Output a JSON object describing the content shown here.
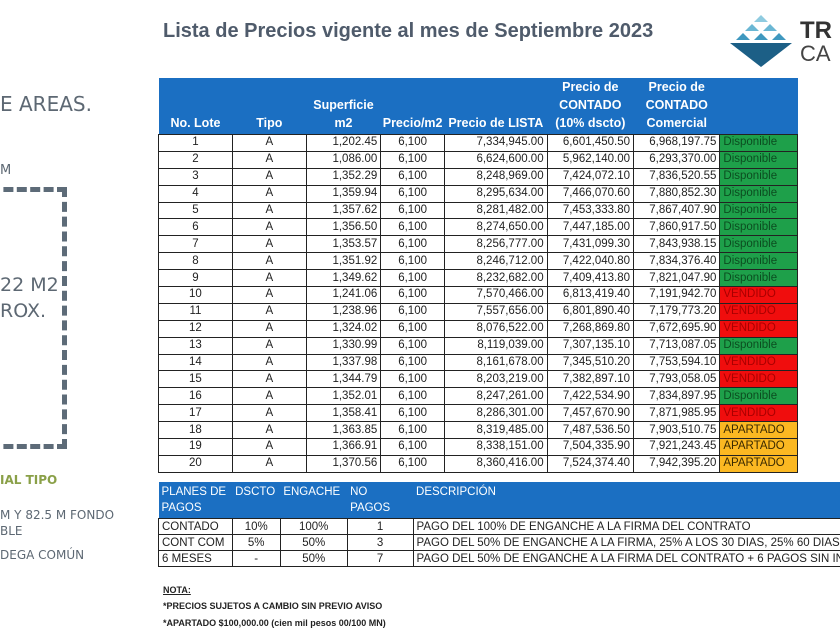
{
  "title": "Lista de Precios vigente al mes de Septiembre 2023",
  "logo": {
    "line1": "TR",
    "line2": "CA"
  },
  "left_panel": {
    "heading": "E AREAS.",
    "dim_top": "M",
    "area_line1": "22 M2",
    "area_line2": "ROX.",
    "section": "IAL TIPO",
    "desc1": "M Y 82.5 M FONDO",
    "desc2": "BLE",
    "desc3": "DEGA COMÚN"
  },
  "colors": {
    "header": "#1b6fc2",
    "disponible": "#1ea04a",
    "vendido": "#f00d0d",
    "apartado": "#fbb822"
  },
  "price_table": {
    "headers": [
      "No. Lote",
      "Tipo",
      "Superficie m2",
      "Precio/m2",
      "Precio de LISTA",
      "Precio de CONTADO (10% dscto)",
      "Precio de CONTADO Comercial",
      ""
    ],
    "rows": [
      [
        "1",
        "A",
        "1,202.45",
        "6,100",
        "7,334,945.00",
        "6,601,450.50",
        "6,968,197.75",
        "Disponible"
      ],
      [
        "2",
        "A",
        "1,086.00",
        "6,100",
        "6,624,600.00",
        "5,962,140.00",
        "6,293,370.00",
        "Disponible"
      ],
      [
        "3",
        "A",
        "1,352.29",
        "6,100",
        "8,248,969.00",
        "7,424,072.10",
        "7,836,520.55",
        "Disponible"
      ],
      [
        "4",
        "A",
        "1,359.94",
        "6,100",
        "8,295,634.00",
        "7,466,070.60",
        "7,880,852.30",
        "Disponible"
      ],
      [
        "5",
        "A",
        "1,357.62",
        "6,100",
        "8,281,482.00",
        "7,453,333.80",
        "7,867,407.90",
        "Disponible"
      ],
      [
        "6",
        "A",
        "1,356.50",
        "6,100",
        "8,274,650.00",
        "7,447,185.00",
        "7,860,917.50",
        "Disponible"
      ],
      [
        "7",
        "A",
        "1,353.57",
        "6,100",
        "8,256,777.00",
        "7,431,099.30",
        "7,843,938.15",
        "Disponible"
      ],
      [
        "8",
        "A",
        "1,351.92",
        "6,100",
        "8,246,712.00",
        "7,422,040.80",
        "7,834,376.40",
        "Disponible"
      ],
      [
        "9",
        "A",
        "1,349.62",
        "6,100",
        "8,232,682.00",
        "7,409,413.80",
        "7,821,047.90",
        "Disponible"
      ],
      [
        "10",
        "A",
        "1,241.06",
        "6,100",
        "7,570,466.00",
        "6,813,419.40",
        "7,191,942.70",
        "VENDIDO"
      ],
      [
        "11",
        "A",
        "1,238.96",
        "6,100",
        "7,557,656.00",
        "6,801,890.40",
        "7,179,773.20",
        "VENDIDO"
      ],
      [
        "12",
        "A",
        "1,324.02",
        "6,100",
        "8,076,522.00",
        "7,268,869.80",
        "7,672,695.90",
        "VENDIDO"
      ],
      [
        "13",
        "A",
        "1,330.99",
        "6,100",
        "8,119,039.00",
        "7,307,135.10",
        "7,713,087.05",
        "Disponible"
      ],
      [
        "14",
        "A",
        "1,337.98",
        "6,100",
        "8,161,678.00",
        "7,345,510.20",
        "7,753,594.10",
        "VENDIDO"
      ],
      [
        "15",
        "A",
        "1,344.79",
        "6,100",
        "8,203,219.00",
        "7,382,897.10",
        "7,793,058.05",
        "VENDIDO"
      ],
      [
        "16",
        "A",
        "1,352.01",
        "6,100",
        "8,247,261.00",
        "7,422,534.90",
        "7,834,897.95",
        "Disponible"
      ],
      [
        "17",
        "A",
        "1,358.41",
        "6,100",
        "8,286,301.00",
        "7,457,670.90",
        "7,871,985.95",
        "VENDIDO"
      ],
      [
        "18",
        "A",
        "1,363.85",
        "6,100",
        "8,319,485.00",
        "7,487,536.50",
        "7,903,510.75",
        "APARTADO"
      ],
      [
        "19",
        "A",
        "1,366.91",
        "6,100",
        "8,338,151.00",
        "7,504,335.90",
        "7,921,243.45",
        "APARTADO"
      ],
      [
        "20",
        "A",
        "1,370.56",
        "6,100",
        "8,360,416.00",
        "7,524,374.40",
        "7,942,395.20",
        "APARTADO"
      ]
    ]
  },
  "plans_table": {
    "headers": [
      "PLANES DE PAGOS",
      "DSCTO",
      "ENGACHE",
      "NO PAGOS",
      "DESCRIPCIÓN"
    ],
    "rows": [
      [
        "CONTADO",
        "10%",
        "100%",
        "1",
        "PAGO DEL 100% DE ENGANCHE A LA FIRMA DEL CONTRATO"
      ],
      [
        "CONT COM",
        "5%",
        "50%",
        "3",
        "PAGO DEL 50% DE ENGANCHE A LA FIRMA, 25% A LOS 30 DIAS, 25% 60 DIAS"
      ],
      [
        "6 MESES",
        "-",
        "50%",
        "7",
        "PAGO DEL 50% DE ENGANCHE A LA FIRMA DEL CONTRATO + 6 PAGOS SIN IN"
      ]
    ]
  },
  "notes": {
    "heading": "NOTA:",
    "lines": [
      "*PRECIOS SUJETOS A CAMBIO SIN PREVIO AVISO",
      "*APARTADO $100,000.00 (cien mil pesos 00/100 MN)"
    ]
  }
}
